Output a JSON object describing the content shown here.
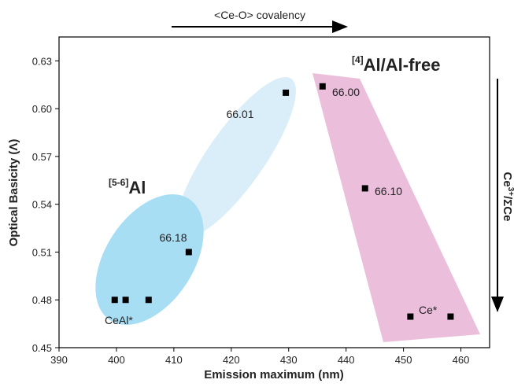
{
  "chart_data": {
    "type": "scatter",
    "x_label": "Emission maximum (nm)",
    "y_label": "Optical Basicity (Λ)",
    "top_arrow_label": "<Ce-O> covalency",
    "right_arrow_label": {
      "main": "Ce",
      "sup": "3+",
      "rest": "/ΣCe"
    },
    "group_labels": [
      {
        "sup": "[5-6]",
        "text": "Al"
      },
      {
        "sup": "[4]",
        "text": "Al/Al-free"
      }
    ],
    "xlim": [
      390,
      465
    ],
    "xticks": [
      390,
      400,
      410,
      420,
      430,
      440,
      450,
      460
    ],
    "ylim": [
      0.45,
      0.645
    ],
    "yticks": [
      0.45,
      0.48,
      0.51,
      0.54,
      0.57,
      {
        "value": 0.6,
        "label": "0.60"
      },
      0.63
    ],
    "x": [
      399.7,
      401.6,
      405.6,
      412.6,
      429.5,
      435.9,
      443.3,
      451.2,
      458.2
    ],
    "values": [
      0.48,
      0.48,
      0.48,
      0.51,
      0.61,
      0.614,
      0.55,
      0.4695,
      0.4695
    ],
    "color": "#000000",
    "annotations": [
      {
        "text": "66.01",
        "color": "#222222"
      },
      {
        "text": "66.00",
        "color": "#222222"
      },
      {
        "text": "66.10",
        "color": "#222222"
      },
      {
        "text": "66.18",
        "color": "#222222"
      },
      {
        "text": "CeAl*",
        "color": "#e8202a"
      },
      {
        "text": "Ce*",
        "color": "#e8202a"
      }
    ]
  }
}
